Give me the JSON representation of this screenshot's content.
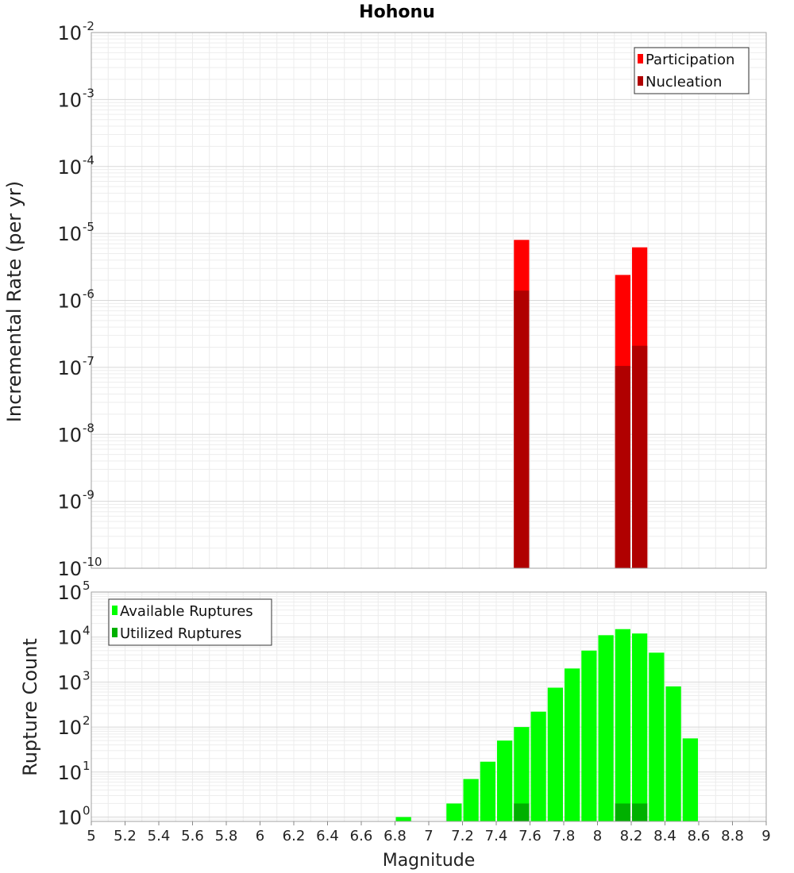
{
  "title": "Hohonu",
  "chart_data": [
    {
      "type": "bar",
      "title": "Hohonu",
      "xlabel": "Magnitude",
      "ylabel": "Incremental Rate (per yr)",
      "yscale": "log",
      "xlim": [
        5,
        9
      ],
      "ylim": [
        1e-10,
        0.01
      ],
      "y_tick_exponents": [
        -10,
        -9,
        -8,
        -7,
        -6,
        -5,
        -4,
        -3,
        -2
      ],
      "bin_width": 0.1,
      "grid": true,
      "legend_position": "top-right",
      "series": [
        {
          "name": "Participation",
          "color": "#ff0000",
          "x": [
            7.55,
            8.15,
            8.25
          ],
          "values": [
            8e-06,
            2.4e-06,
            6.2e-06
          ]
        },
        {
          "name": "Nucleation",
          "color": "#b00000",
          "x": [
            7.55,
            8.15,
            8.25
          ],
          "values": [
            1.4e-06,
            1.05e-07,
            2.1e-07
          ]
        }
      ]
    },
    {
      "type": "bar",
      "xlabel": "Magnitude",
      "ylabel": "Rupture Count",
      "yscale": "log",
      "xlim": [
        5,
        9
      ],
      "ylim": [
        0.8,
        100000
      ],
      "y_tick_exponents": [
        0,
        1,
        2,
        3,
        4,
        5
      ],
      "x_ticks": [
        "5",
        "5.2",
        "5.4",
        "5.6",
        "5.8",
        "6",
        "6.2",
        "6.4",
        "6.6",
        "6.8",
        "7",
        "7.2",
        "7.4",
        "7.6",
        "7.8",
        "8",
        "8.2",
        "8.4",
        "8.6",
        "8.8",
        "9"
      ],
      "bin_width": 0.1,
      "grid": true,
      "legend_position": "top-left",
      "series": [
        {
          "name": "Available Ruptures",
          "color": "#00ff00",
          "x": [
            6.85,
            7.15,
            7.25,
            7.35,
            7.45,
            7.55,
            7.65,
            7.75,
            7.85,
            7.95,
            8.05,
            8.15,
            8.25,
            8.35,
            8.45,
            8.55
          ],
          "values": [
            1,
            2,
            7,
            17,
            50,
            100,
            220,
            750,
            2000,
            5000,
            11000,
            15000,
            12000,
            4500,
            800,
            56
          ]
        },
        {
          "name": "Utilized Ruptures",
          "color": "#00b000",
          "x": [
            7.55,
            8.15,
            8.25
          ],
          "values": [
            2,
            2,
            2
          ]
        }
      ]
    }
  ]
}
